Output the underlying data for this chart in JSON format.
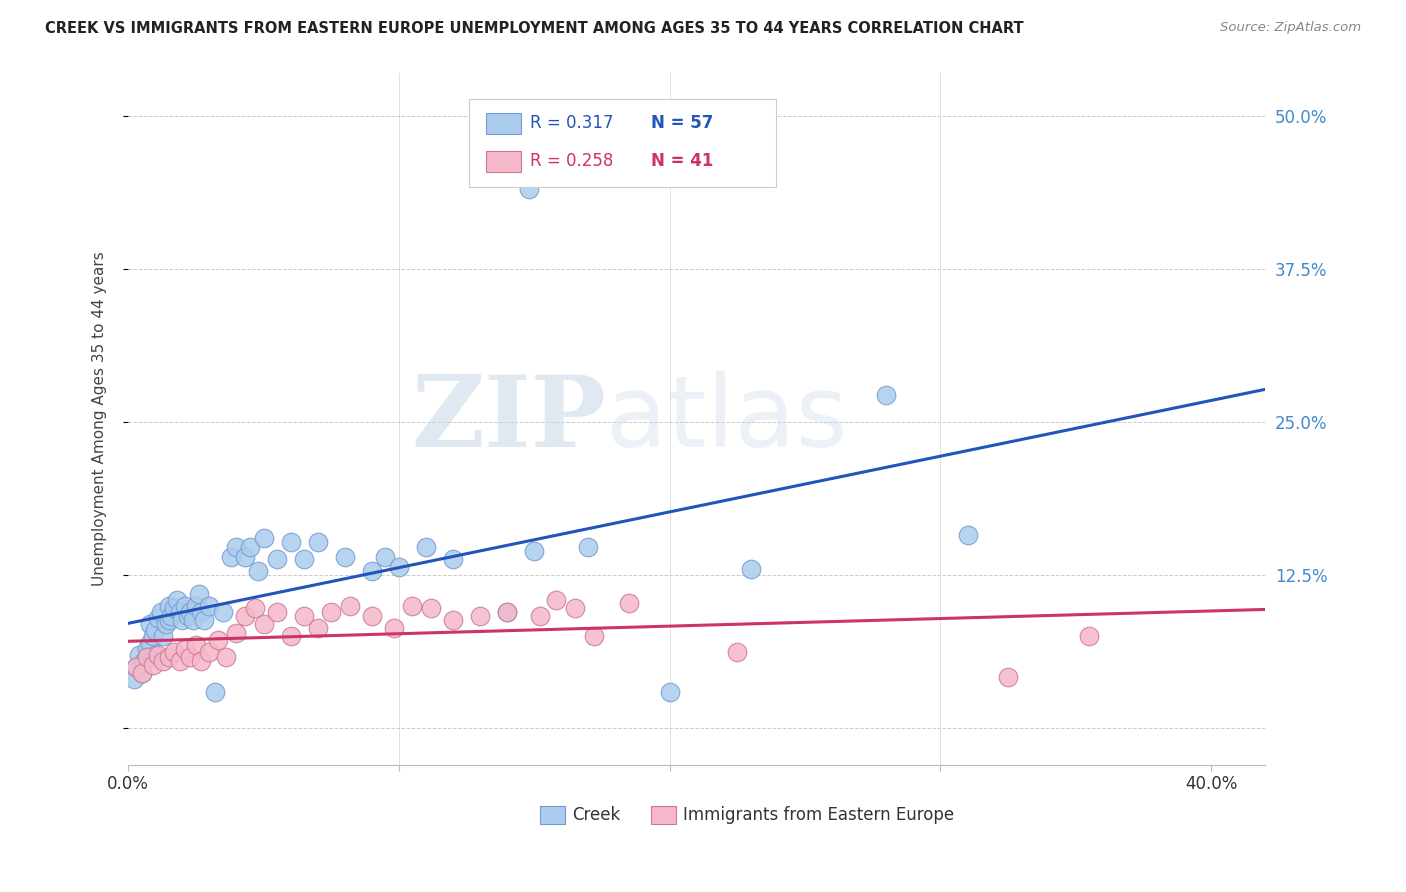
{
  "title": "CREEK VS IMMIGRANTS FROM EASTERN EUROPE UNEMPLOYMENT AMONG AGES 35 TO 44 YEARS CORRELATION CHART",
  "source": "Source: ZipAtlas.com",
  "ylabel": "Unemployment Among Ages 35 to 44 years",
  "xlim": [
    0.0,
    0.42
  ],
  "ylim": [
    -0.03,
    0.535
  ],
  "yticks": [
    0.0,
    0.125,
    0.25,
    0.375,
    0.5
  ],
  "ytick_labels_right": [
    "",
    "12.5%",
    "25.0%",
    "37.5%",
    "50.0%"
  ],
  "background_color": "#ffffff",
  "creek_color": "#aaccee",
  "creek_edge_color": "#7799cc",
  "immig_color": "#f5b8c8",
  "immig_edge_color": "#cc7799",
  "creek_line_color": "#2255bb",
  "immig_line_color": "#cc3366",
  "creek_R": 0.317,
  "creek_N": 57,
  "immig_R": 0.258,
  "immig_N": 41,
  "creek_x": [
    0.002,
    0.003,
    0.004,
    0.005,
    0.006,
    0.007,
    0.008,
    0.008,
    0.009,
    0.01,
    0.01,
    0.011,
    0.012,
    0.013,
    0.014,
    0.015,
    0.015,
    0.016,
    0.017,
    0.018,
    0.019,
    0.02,
    0.021,
    0.022,
    0.023,
    0.024,
    0.025,
    0.026,
    0.027,
    0.028,
    0.03,
    0.032,
    0.035,
    0.038,
    0.04,
    0.043,
    0.045,
    0.048,
    0.05,
    0.055,
    0.06,
    0.065,
    0.07,
    0.08,
    0.09,
    0.095,
    0.1,
    0.11,
    0.12,
    0.14,
    0.15,
    0.17,
    0.2,
    0.23,
    0.28,
    0.31,
    0.148
  ],
  "creek_y": [
    0.04,
    0.05,
    0.06,
    0.045,
    0.055,
    0.065,
    0.07,
    0.085,
    0.075,
    0.08,
    0.06,
    0.09,
    0.095,
    0.075,
    0.085,
    0.1,
    0.088,
    0.092,
    0.098,
    0.105,
    0.095,
    0.088,
    0.1,
    0.092,
    0.095,
    0.088,
    0.1,
    0.11,
    0.095,
    0.088,
    0.1,
    0.03,
    0.095,
    0.14,
    0.148,
    0.14,
    0.148,
    0.128,
    0.155,
    0.138,
    0.152,
    0.138,
    0.152,
    0.14,
    0.128,
    0.14,
    0.132,
    0.148,
    0.138,
    0.095,
    0.145,
    0.148,
    0.03,
    0.13,
    0.272,
    0.158,
    0.44
  ],
  "immig_x": [
    0.003,
    0.005,
    0.007,
    0.009,
    0.011,
    0.013,
    0.015,
    0.017,
    0.019,
    0.021,
    0.023,
    0.025,
    0.027,
    0.03,
    0.033,
    0.036,
    0.04,
    0.043,
    0.047,
    0.05,
    0.055,
    0.06,
    0.065,
    0.07,
    0.075,
    0.082,
    0.09,
    0.098,
    0.105,
    0.112,
    0.12,
    0.13,
    0.14,
    0.152,
    0.158,
    0.165,
    0.172,
    0.185,
    0.225,
    0.325,
    0.355
  ],
  "immig_y": [
    0.05,
    0.045,
    0.058,
    0.052,
    0.06,
    0.055,
    0.058,
    0.062,
    0.055,
    0.065,
    0.058,
    0.068,
    0.055,
    0.062,
    0.072,
    0.058,
    0.078,
    0.092,
    0.098,
    0.085,
    0.095,
    0.075,
    0.092,
    0.082,
    0.095,
    0.1,
    0.092,
    0.082,
    0.1,
    0.098,
    0.088,
    0.092,
    0.095,
    0.092,
    0.105,
    0.098,
    0.075,
    0.102,
    0.062,
    0.042,
    0.075
  ],
  "grid_color": "#cccccc",
  "title_color": "#222222",
  "axis_color": "#444444",
  "right_tick_color": "#4488cc",
  "marker_size": 180
}
